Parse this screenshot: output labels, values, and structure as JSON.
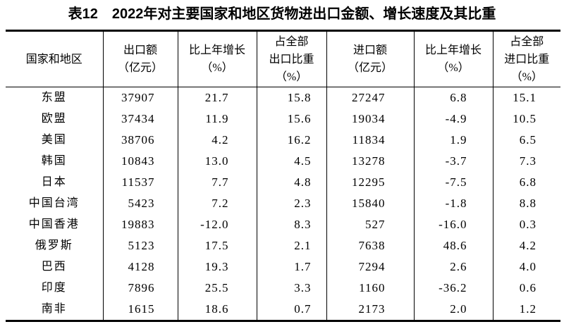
{
  "page": {
    "background_color": "#ffffff",
    "text_color": "#000000"
  },
  "title": {
    "label": "表12",
    "text": "2022年对主要国家和地区货物进出口金额、增长速度及其比重"
  },
  "table": {
    "columns": [
      {
        "id": "region",
        "lines": [
          "国家和地区"
        ]
      },
      {
        "id": "export_value",
        "lines": [
          "出口额",
          "（亿元）"
        ]
      },
      {
        "id": "export_growth",
        "lines": [
          "比上年增长",
          "（%）"
        ]
      },
      {
        "id": "export_share",
        "lines": [
          "占全部",
          "出口比重",
          "（%）"
        ]
      },
      {
        "id": "import_value",
        "lines": [
          "进口额",
          "（亿元）"
        ]
      },
      {
        "id": "import_growth",
        "lines": [
          "比上年增长",
          "（%）"
        ]
      },
      {
        "id": "import_share",
        "lines": [
          "占全部",
          "进口比重",
          "（%）"
        ]
      }
    ],
    "rows": [
      {
        "region": "东盟",
        "export_value": "37907",
        "export_growth": "21.7",
        "export_share": "15.8",
        "import_value": "27247",
        "import_growth": "6.8",
        "import_share": "15.1"
      },
      {
        "region": "欧盟",
        "export_value": "37434",
        "export_growth": "11.9",
        "export_share": "15.6",
        "import_value": "19034",
        "import_growth": "-4.9",
        "import_share": "10.5"
      },
      {
        "region": "美国",
        "export_value": "38706",
        "export_growth": "4.2",
        "export_share": "16.2",
        "import_value": "11834",
        "import_growth": "1.9",
        "import_share": "6.5"
      },
      {
        "region": "韩国",
        "export_value": "10843",
        "export_growth": "13.0",
        "export_share": "4.5",
        "import_value": "13278",
        "import_growth": "-3.7",
        "import_share": "7.3"
      },
      {
        "region": "日本",
        "export_value": "11537",
        "export_growth": "7.7",
        "export_share": "4.8",
        "import_value": "12295",
        "import_growth": "-7.5",
        "import_share": "6.8"
      },
      {
        "region": "中国台湾",
        "export_value": "5423",
        "export_growth": "7.2",
        "export_share": "2.3",
        "import_value": "15840",
        "import_growth": "-1.8",
        "import_share": "8.8"
      },
      {
        "region": "中国香港",
        "export_value": "19883",
        "export_growth": "-12.0",
        "export_share": "8.3",
        "import_value": "527",
        "import_growth": "-16.0",
        "import_share": "0.3"
      },
      {
        "region": "俄罗斯",
        "export_value": "5123",
        "export_growth": "17.5",
        "export_share": "2.1",
        "import_value": "7638",
        "import_growth": "48.6",
        "import_share": "4.2"
      },
      {
        "region": "巴西",
        "export_value": "4128",
        "export_growth": "19.3",
        "export_share": "1.7",
        "import_value": "7294",
        "import_growth": "2.6",
        "import_share": "4.0"
      },
      {
        "region": "印度",
        "export_value": "7896",
        "export_growth": "25.5",
        "export_share": "3.3",
        "import_value": "1160",
        "import_growth": "-36.2",
        "import_share": "0.6"
      },
      {
        "region": "南非",
        "export_value": "1615",
        "export_growth": "18.6",
        "export_share": "0.7",
        "import_value": "2173",
        "import_growth": "2.0",
        "import_share": "1.2"
      }
    ]
  }
}
